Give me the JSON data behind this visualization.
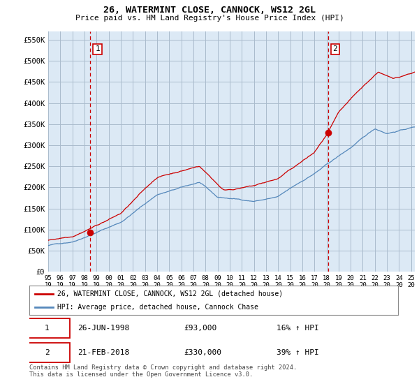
{
  "title": "26, WATERMINT CLOSE, CANNOCK, WS12 2GL",
  "subtitle": "Price paid vs. HM Land Registry's House Price Index (HPI)",
  "ylabel_ticks": [
    "£0",
    "£50K",
    "£100K",
    "£150K",
    "£200K",
    "£250K",
    "£300K",
    "£350K",
    "£400K",
    "£450K",
    "£500K",
    "£550K"
  ],
  "ytick_values": [
    0,
    50000,
    100000,
    150000,
    200000,
    250000,
    300000,
    350000,
    400000,
    450000,
    500000,
    550000
  ],
  "ylim": [
    0,
    570000
  ],
  "xlim_start": 1995.0,
  "xlim_end": 2025.3,
  "xtick_years": [
    1995,
    1996,
    1997,
    1998,
    1999,
    2000,
    2001,
    2002,
    2003,
    2004,
    2005,
    2006,
    2007,
    2008,
    2009,
    2010,
    2011,
    2012,
    2013,
    2014,
    2015,
    2016,
    2017,
    2018,
    2019,
    2020,
    2021,
    2022,
    2023,
    2024,
    2025
  ],
  "sale1_x": 1998.48,
  "sale1_y": 93000,
  "sale1_label": "1",
  "sale2_x": 2018.12,
  "sale2_y": 330000,
  "sale2_label": "2",
  "marker_color": "#cc0000",
  "hpi_line_color": "#5588bb",
  "price_line_color": "#cc0000",
  "chart_bg_color": "#dce9f5",
  "background_color": "#ffffff",
  "grid_color": "#aabbcc",
  "legend_label_red": "26, WATERMINT CLOSE, CANNOCK, WS12 2GL (detached house)",
  "legend_label_blue": "HPI: Average price, detached house, Cannock Chase",
  "table_row1": [
    "1",
    "26-JUN-1998",
    "£93,000",
    "16% ↑ HPI"
  ],
  "table_row2": [
    "2",
    "21-FEB-2018",
    "£330,000",
    "39% ↑ HPI"
  ],
  "footnote": "Contains HM Land Registry data © Crown copyright and database right 2024.\nThis data is licensed under the Open Government Licence v3.0."
}
